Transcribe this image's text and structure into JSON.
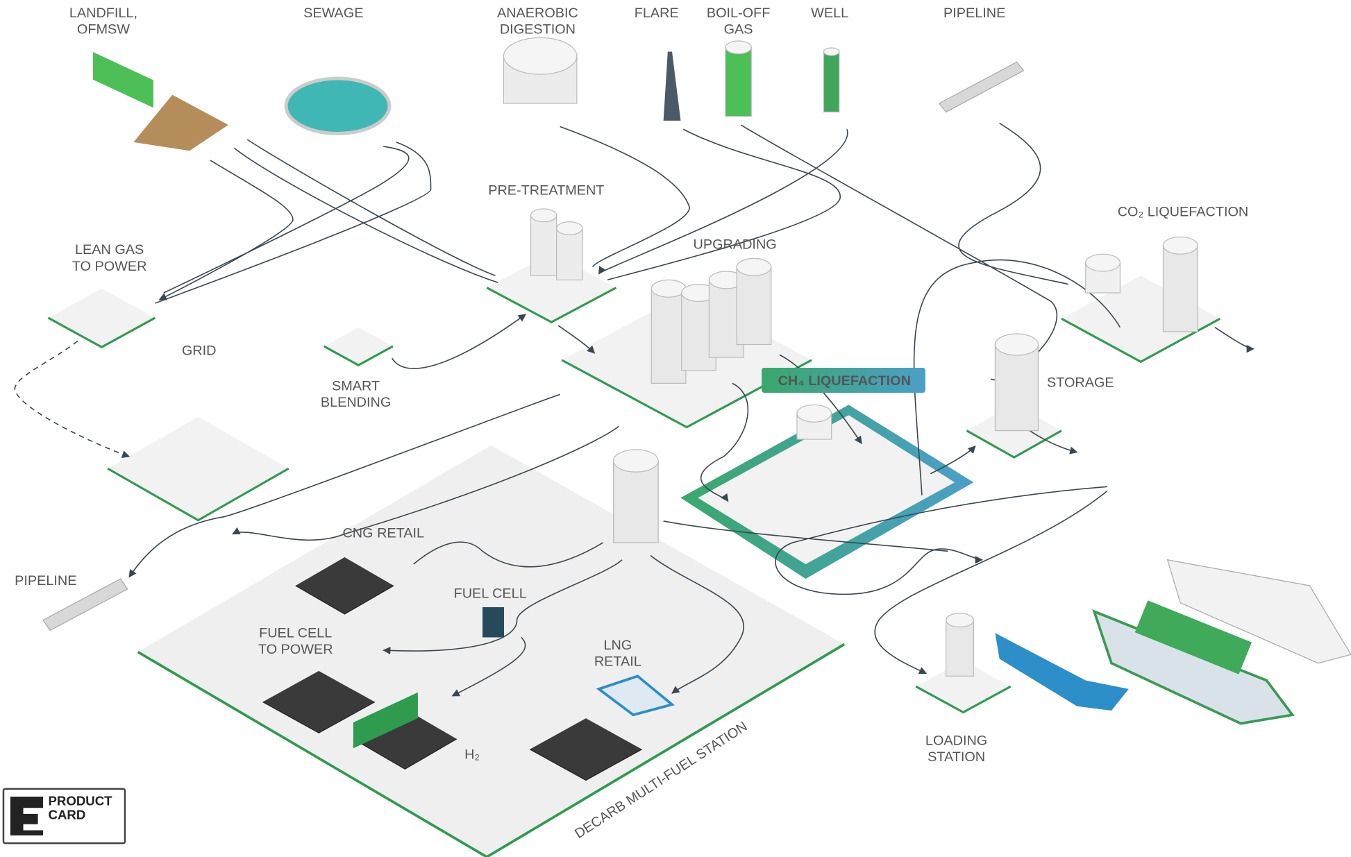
{
  "nodes": [
    {
      "label": [
        "LANDFILL,",
        "OFMSW"
      ]
    },
    {
      "label": [
        "SEWAGE"
      ]
    },
    {
      "label": [
        "ANAEROBIC",
        "DIGESTION"
      ]
    },
    {
      "label": [
        "FLARE"
      ]
    },
    {
      "label": [
        "BOIL-OFF",
        "GAS"
      ]
    },
    {
      "label": [
        "WELL"
      ]
    },
    {
      "label": [
        "PIPELINE"
      ]
    },
    {
      "label": [
        "PRE-TREATMENT"
      ]
    },
    {
      "label": [
        "UPGRADING"
      ]
    },
    {
      "label": [
        "CO₂ LIQUEFACTION"
      ]
    },
    {
      "label": [
        "LEAN GAS",
        "TO POWER"
      ]
    },
    {
      "label": [
        "GRID"
      ]
    },
    {
      "label": [
        "SMART",
        "BLENDING"
      ]
    },
    {
      "label": [
        "CH₄ LIQUEFACTION"
      ]
    },
    {
      "label": [
        "STORAGE"
      ]
    },
    {
      "label": [
        "CNG RETAIL"
      ]
    },
    {
      "label": [
        "FUEL CELL"
      ]
    },
    {
      "label": [
        "PIPELINE"
      ]
    },
    {
      "label": [
        "FUEL CELL",
        "TO POWER"
      ]
    },
    {
      "label": [
        "LNG",
        "RETAIL"
      ]
    },
    {
      "label": [
        "H₂"
      ]
    },
    {
      "label": [
        "LOADING",
        "STATION"
      ]
    }
  ],
  "zone": {
    "label": "DECARB MULTI-FUEL STATION"
  },
  "badge": {
    "line1": "PRODUCT",
    "line2": "CARD"
  }
}
